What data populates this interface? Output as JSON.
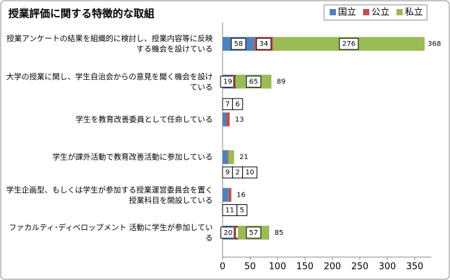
{
  "chart_data": {
    "type": "stacked-bar-horizontal",
    "title": "授業評価に関する特徴的な取組",
    "categories": [
      "授業アンケートの結果を組織的に検討し、授業内容等に反映する機会を設けている",
      "大学の授業に関し、学生自治会からの意見を聞く機会を設けている",
      "学生を教育改善委員として任命している",
      "学生が課外活動で教育改善活動に参加している",
      "学生企画型、もしくは学生が参加する授業運営委員会を置く授業科目を開設している",
      "ファカルティ･ディベロップメント 活動に学生が参加している"
    ],
    "series": [
      {
        "name": "国立",
        "color": "#4f81bd",
        "values": [
          58,
          19,
          7,
          9,
          11,
          20
        ]
      },
      {
        "name": "公立",
        "color": "#c0504d",
        "values": [
          34,
          5,
          6,
          2,
          5,
          8
        ]
      },
      {
        "name": "私立",
        "color": "#9bbb59",
        "values": [
          276,
          65,
          null,
          10,
          null,
          57
        ]
      }
    ],
    "totals": [
      368,
      89,
      13,
      21,
      16,
      85
    ],
    "xlim": [
      0,
      380
    ],
    "xticks": [
      0,
      50,
      100,
      150,
      200,
      250,
      300,
      350
    ],
    "legend": "top-right"
  }
}
